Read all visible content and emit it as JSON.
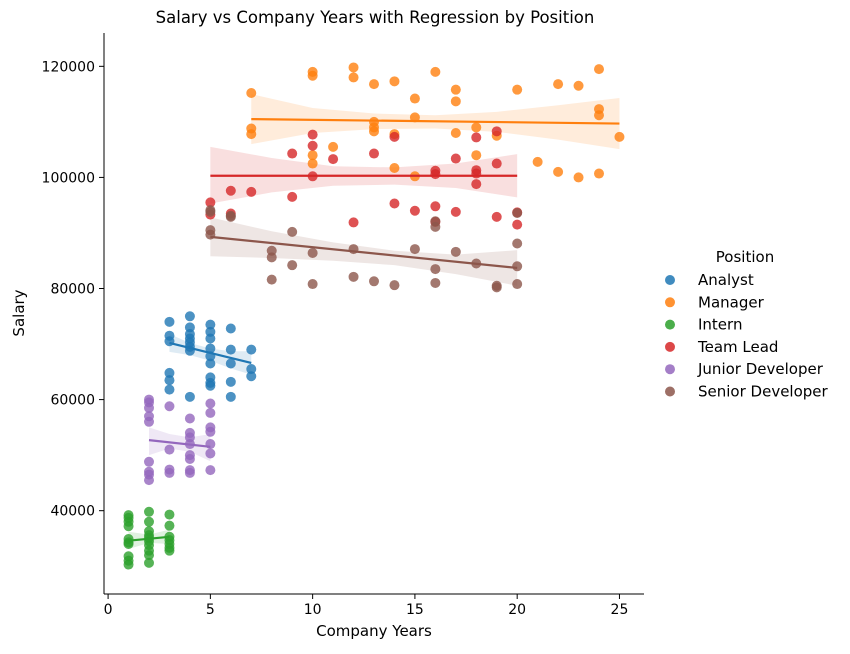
{
  "chart_data": {
    "type": "scatter",
    "title": "Salary vs Company Years with Regression by Position",
    "xlabel": "Company Years",
    "ylabel": "Salary",
    "xlim": [
      -0.2,
      26.2
    ],
    "ylim": [
      25000,
      126000
    ],
    "xticks": [
      0,
      5,
      10,
      15,
      20,
      25
    ],
    "yticks": [
      40000,
      60000,
      80000,
      100000,
      120000
    ],
    "xtick_labels": [
      "0",
      "5",
      "10",
      "15",
      "20",
      "25"
    ],
    "ytick_labels": [
      "40000",
      "60000",
      "80000",
      "100000",
      "120000"
    ],
    "grid": false,
    "legend": {
      "title": "Position",
      "placement": "right"
    },
    "series": [
      {
        "name": "Analyst",
        "color": "#1f77b4",
        "points": [
          [
            3,
            74000
          ],
          [
            3,
            71500
          ],
          [
            3,
            70500
          ],
          [
            3,
            64800
          ],
          [
            3,
            63500
          ],
          [
            3,
            61800
          ],
          [
            4,
            75000
          ],
          [
            4,
            73000
          ],
          [
            4,
            71800
          ],
          [
            4,
            71000
          ],
          [
            4,
            70300
          ],
          [
            4,
            69500
          ],
          [
            4,
            68800
          ],
          [
            4,
            60500
          ],
          [
            5,
            73500
          ],
          [
            5,
            72200
          ],
          [
            5,
            71000
          ],
          [
            5,
            69200
          ],
          [
            5,
            67800
          ],
          [
            5,
            66500
          ],
          [
            5,
            64000
          ],
          [
            5,
            63000
          ],
          [
            5,
            62500
          ],
          [
            6,
            72800
          ],
          [
            6,
            69000
          ],
          [
            6,
            66500
          ],
          [
            6,
            63200
          ],
          [
            6,
            60500
          ],
          [
            7,
            69000
          ],
          [
            7,
            65500
          ],
          [
            7,
            64200
          ]
        ],
        "regression": {
          "x": [
            3,
            7
          ],
          "y": [
            70200,
            66600
          ]
        },
        "ci": {
          "x": [
            3,
            4,
            5,
            6,
            7
          ],
          "upper": [
            71800,
            70200,
            69200,
            68700,
            68700
          ],
          "lower": [
            68600,
            68000,
            67000,
            65600,
            64500
          ]
        }
      },
      {
        "name": "Manager",
        "color": "#ff7f0e",
        "points": [
          [
            7,
            115200
          ],
          [
            7,
            108800
          ],
          [
            7,
            107800
          ],
          [
            10,
            119000
          ],
          [
            10,
            118300
          ],
          [
            10,
            104000
          ],
          [
            10,
            102500
          ],
          [
            11,
            105500
          ],
          [
            12,
            119800
          ],
          [
            12,
            118000
          ],
          [
            13,
            116800
          ],
          [
            13,
            110000
          ],
          [
            13,
            109000
          ],
          [
            13,
            108300
          ],
          [
            14,
            117300
          ],
          [
            14,
            107800
          ],
          [
            14,
            101700
          ],
          [
            15,
            114200
          ],
          [
            15,
            110800
          ],
          [
            15,
            100200
          ],
          [
            16,
            119000
          ],
          [
            17,
            115800
          ],
          [
            17,
            113700
          ],
          [
            17,
            108000
          ],
          [
            18,
            109000
          ],
          [
            18,
            104000
          ],
          [
            19,
            107500
          ],
          [
            20,
            115800
          ],
          [
            21,
            102800
          ],
          [
            22,
            116800
          ],
          [
            22,
            101000
          ],
          [
            23,
            116500
          ],
          [
            23,
            100000
          ],
          [
            24,
            119500
          ],
          [
            24,
            112300
          ],
          [
            24,
            111200
          ],
          [
            24,
            100700
          ],
          [
            25,
            107300
          ]
        ],
        "regression": {
          "x": [
            7,
            25
          ],
          "y": [
            110500,
            109700
          ]
        },
        "ci": {
          "x": [
            7,
            10,
            13,
            16,
            19,
            22,
            25
          ],
          "upper": [
            115000,
            112500,
            111500,
            111200,
            111800,
            113000,
            114300
          ],
          "lower": [
            106000,
            108000,
            108700,
            108800,
            108200,
            106800,
            105100
          ]
        }
      },
      {
        "name": "Intern",
        "color": "#2ca02c",
        "points": [
          [
            1,
            39200
          ],
          [
            1,
            38700
          ],
          [
            1,
            38000
          ],
          [
            1,
            37200
          ],
          [
            1,
            34900
          ],
          [
            1,
            34300
          ],
          [
            1,
            34000
          ],
          [
            1,
            31800
          ],
          [
            1,
            31000
          ],
          [
            1,
            30300
          ],
          [
            2,
            39800
          ],
          [
            2,
            38000
          ],
          [
            2,
            36300
          ],
          [
            2,
            35600
          ],
          [
            2,
            35100
          ],
          [
            2,
            34500
          ],
          [
            2,
            33800
          ],
          [
            2,
            32800
          ],
          [
            2,
            32000
          ],
          [
            2,
            30600
          ],
          [
            3,
            39300
          ],
          [
            3,
            37300
          ],
          [
            3,
            35300
          ],
          [
            3,
            34700
          ],
          [
            3,
            34000
          ],
          [
            3,
            33300
          ],
          [
            3,
            32800
          ]
        ],
        "regression": {
          "x": [
            1,
            3
          ],
          "y": [
            34600,
            35300
          ]
        },
        "ci": {
          "x": [
            1,
            2,
            3
          ],
          "upper": [
            36200,
            35700,
            36600
          ],
          "lower": [
            33100,
            34200,
            34000
          ]
        }
      },
      {
        "name": "Team Lead",
        "color": "#d62728",
        "points": [
          [
            5,
            95500
          ],
          [
            5,
            93300
          ],
          [
            6,
            97600
          ],
          [
            6,
            93500
          ],
          [
            7,
            97400
          ],
          [
            9,
            104300
          ],
          [
            9,
            96500
          ],
          [
            10,
            107700
          ],
          [
            10,
            105700
          ],
          [
            10,
            100200
          ],
          [
            11,
            103300
          ],
          [
            12,
            91900
          ],
          [
            13,
            104300
          ],
          [
            14,
            107300
          ],
          [
            14,
            95300
          ],
          [
            15,
            94000
          ],
          [
            16,
            101200
          ],
          [
            16,
            100600
          ],
          [
            16,
            94800
          ],
          [
            16,
            92000
          ],
          [
            17,
            103400
          ],
          [
            17,
            93800
          ],
          [
            18,
            107200
          ],
          [
            18,
            101300
          ],
          [
            18,
            100700
          ],
          [
            18,
            98800
          ],
          [
            19,
            108300
          ],
          [
            19,
            102500
          ],
          [
            19,
            92900
          ],
          [
            20,
            93700
          ],
          [
            20,
            91500
          ]
        ],
        "regression": {
          "x": [
            5,
            20
          ],
          "y": [
            100300,
            100300
          ]
        },
        "ci": {
          "x": [
            5,
            8,
            11,
            14,
            17,
            20
          ],
          "upper": [
            105500,
            103500,
            102000,
            101800,
            102500,
            104200
          ],
          "lower": [
            95300,
            97300,
            98500,
            98700,
            98100,
            96400
          ]
        }
      },
      {
        "name": "Junior Developer",
        "color": "#9467bd",
        "points": [
          [
            2,
            60000
          ],
          [
            2,
            59500
          ],
          [
            2,
            58500
          ],
          [
            2,
            57000
          ],
          [
            2,
            56000
          ],
          [
            2,
            48800
          ],
          [
            2,
            47000
          ],
          [
            2,
            46500
          ],
          [
            2,
            45500
          ],
          [
            3,
            58800
          ],
          [
            3,
            51000
          ],
          [
            3,
            47400
          ],
          [
            3,
            46800
          ],
          [
            4,
            56600
          ],
          [
            4,
            54000
          ],
          [
            4,
            53200
          ],
          [
            4,
            52000
          ],
          [
            4,
            50000
          ],
          [
            4,
            49300
          ],
          [
            4,
            47300
          ],
          [
            4,
            46800
          ],
          [
            5,
            59300
          ],
          [
            5,
            57600
          ],
          [
            5,
            55000
          ],
          [
            5,
            54200
          ],
          [
            5,
            52000
          ],
          [
            5,
            50300
          ],
          [
            5,
            47300
          ]
        ],
        "regression": {
          "x": [
            2,
            5
          ],
          "y": [
            52700,
            51500
          ]
        },
        "ci": {
          "x": [
            2,
            3,
            4,
            5
          ],
          "upper": [
            55000,
            53800,
            53200,
            53800
          ],
          "lower": [
            50000,
            51200,
            50600,
            48900
          ]
        }
      },
      {
        "name": "Senior Developer",
        "color": "#8c564b",
        "points": [
          [
            5,
            94100
          ],
          [
            5,
            93800
          ],
          [
            5,
            90500
          ],
          [
            5,
            89700
          ],
          [
            6,
            93100
          ],
          [
            6,
            92900
          ],
          [
            8,
            86800
          ],
          [
            8,
            85600
          ],
          [
            8,
            81600
          ],
          [
            9,
            90200
          ],
          [
            9,
            84200
          ],
          [
            10,
            86400
          ],
          [
            10,
            80800
          ],
          [
            12,
            87100
          ],
          [
            12,
            82100
          ],
          [
            13,
            81300
          ],
          [
            14,
            80600
          ],
          [
            15,
            87100
          ],
          [
            16,
            92100
          ],
          [
            16,
            91100
          ],
          [
            16,
            83500
          ],
          [
            16,
            81000
          ],
          [
            17,
            86600
          ],
          [
            18,
            84500
          ],
          [
            19,
            80500
          ],
          [
            19,
            80200
          ],
          [
            20,
            93600
          ],
          [
            20,
            88100
          ],
          [
            20,
            84000
          ],
          [
            20,
            80800
          ]
        ],
        "regression": {
          "x": [
            5,
            20
          ],
          "y": [
            89300,
            83700
          ]
        },
        "ci": {
          "x": [
            5,
            8,
            11,
            14,
            17,
            20
          ],
          "upper": [
            92800,
            90300,
            88300,
            86800,
            86100,
            86900
          ],
          "lower": [
            85800,
            85500,
            85000,
            84200,
            82600,
            80500
          ]
        }
      }
    ]
  }
}
